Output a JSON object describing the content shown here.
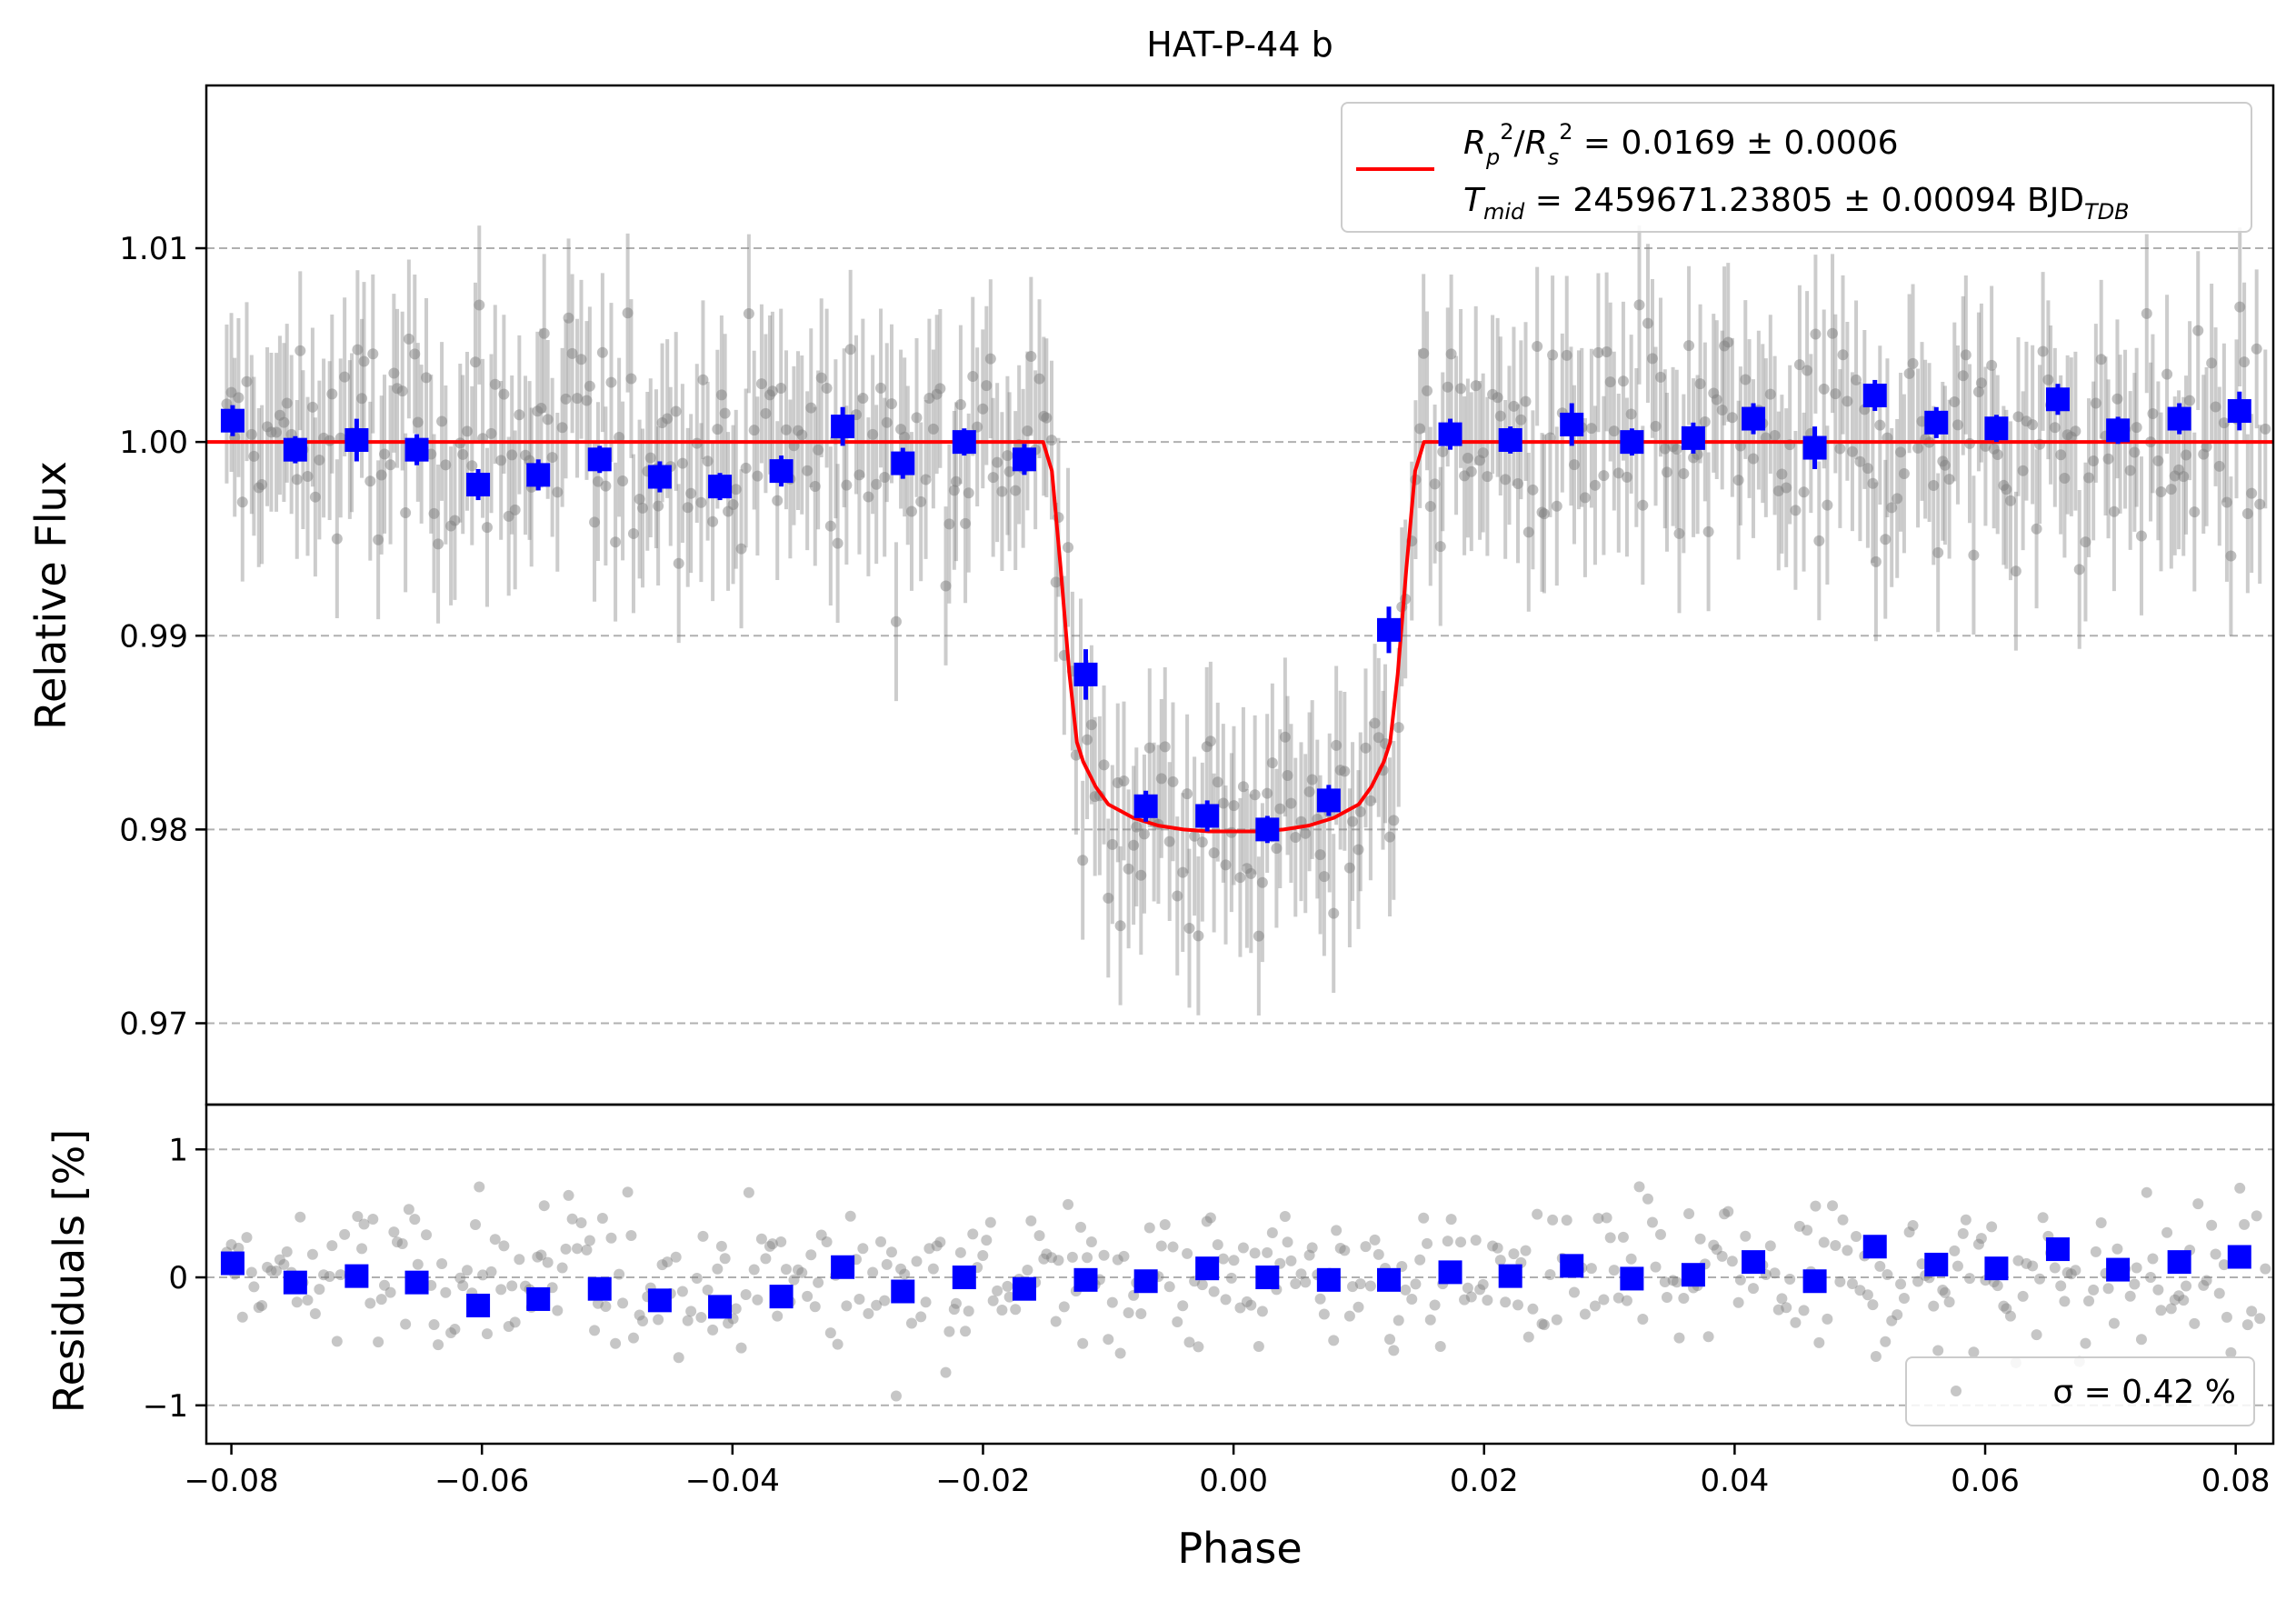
{
  "chart_data": {
    "type": "scatter",
    "title": "HAT-P-44 b",
    "xlabel": "Phase",
    "xlim": [
      -0.082,
      0.083
    ],
    "xticks": [
      -0.08,
      -0.06,
      -0.04,
      -0.02,
      0.0,
      0.02,
      0.04,
      0.06,
      0.08
    ],
    "xtick_labels": [
      "−0.08",
      "−0.06",
      "−0.04",
      "−0.02",
      "0.00",
      "0.02",
      "0.04",
      "0.06",
      "0.08"
    ],
    "top_panel": {
      "ylabel": "Relative Flux",
      "ylim": [
        0.9658,
        1.0184
      ],
      "yticks": [
        0.97,
        0.98,
        0.99,
        1.0,
        1.01
      ],
      "ytick_labels": [
        "0.97",
        "0.98",
        "0.99",
        "1.00",
        "1.01"
      ],
      "grid": "horizontal dashed",
      "legend": {
        "placement": "top-right",
        "line_1": "R_p^2/R_s^2 = 0.0169 ± 0.0006",
        "line_2": "T_mid = 2459671.23805 ± 0.00094 BJD_TDB"
      },
      "model": {
        "color": "#ff0000",
        "baseline": 1.0,
        "depth": 0.0201,
        "ingress_phase": [
          -0.0152,
          -0.0125
        ],
        "egress_phase": [
          0.0125,
          0.0152
        ],
        "x": [
          -0.082,
          -0.0152,
          -0.0145,
          -0.0138,
          -0.0131,
          -0.0125,
          -0.012,
          -0.011,
          -0.01,
          -0.008,
          -0.006,
          -0.004,
          -0.002,
          0.0,
          0.002,
          0.004,
          0.006,
          0.008,
          0.01,
          0.011,
          0.012,
          0.0125,
          0.0131,
          0.0138,
          0.0145,
          0.0152,
          0.083
        ],
        "y": [
          1.0,
          1.0,
          0.9985,
          0.9935,
          0.988,
          0.9845,
          0.9835,
          0.9822,
          0.9813,
          0.9806,
          0.9802,
          0.98,
          0.9799,
          0.9799,
          0.9799,
          0.98,
          0.9802,
          0.9806,
          0.9813,
          0.9822,
          0.9835,
          0.9845,
          0.988,
          0.9935,
          0.9985,
          1.0,
          1.0
        ]
      },
      "binned": {
        "color": "#0000ff",
        "x": [
          -0.0799,
          -0.0749,
          -0.07,
          -0.0652,
          -0.0603,
          -0.0555,
          -0.0506,
          -0.0458,
          -0.041,
          -0.0361,
          -0.0312,
          -0.0264,
          -0.0215,
          -0.0167,
          -0.0118,
          -0.007,
          -0.0021,
          0.0027,
          0.0076,
          0.0124,
          0.0173,
          0.0221,
          0.027,
          0.0318,
          0.0367,
          0.0415,
          0.0464,
          0.0512,
          0.0561,
          0.0609,
          0.0658,
          0.0706,
          0.0755,
          0.0803
        ],
        "y": [
          1.0011,
          0.9996,
          1.0001,
          0.9996,
          0.9978,
          0.9983,
          0.9991,
          0.9982,
          0.9977,
          0.9985,
          1.0008,
          0.9989,
          1.0,
          0.9991,
          0.988,
          0.9812,
          0.9807,
          0.98,
          0.9815,
          0.9903,
          1.0004,
          1.0001,
          1.0009,
          1.0,
          1.0002,
          1.0012,
          0.9997,
          1.0024,
          1.001,
          1.0007,
          1.0022,
          1.0006,
          1.0012,
          1.0016
        ],
        "err": [
          0.0008,
          0.0007,
          0.0011,
          0.0008,
          0.0008,
          0.0008,
          0.0007,
          0.0008,
          0.0007,
          0.0008,
          0.001,
          0.0008,
          0.0007,
          0.0008,
          0.0013,
          0.0008,
          0.0008,
          0.0007,
          0.0008,
          0.0012,
          0.0008,
          0.0007,
          0.0011,
          0.0007,
          0.0008,
          0.0008,
          0.0011,
          0.0008,
          0.0008,
          0.0007,
          0.0008,
          0.0007,
          0.0008,
          0.001
        ]
      },
      "raw_points": {
        "color": "#808080",
        "count": 500,
        "scatter_sigma": 0.0042,
        "error_bar": 0.0041
      }
    },
    "bottom_panel": {
      "ylabel": "Residuals [%]",
      "ylim": [
        -1.3,
        1.35
      ],
      "yticks": [
        -1,
        0,
        1
      ],
      "ytick_labels": [
        "−1",
        "0",
        "1"
      ],
      "grid": "horizontal dashed",
      "legend": {
        "placement": "bottom-right",
        "text": "σ = 0.42 %"
      },
      "binned": {
        "color": "#0000ff",
        "y": [
          0.11,
          -0.04,
          0.01,
          -0.04,
          -0.22,
          -0.17,
          -0.09,
          -0.18,
          -0.23,
          -0.15,
          0.08,
          -0.11,
          0.0,
          -0.09,
          -0.02,
          -0.03,
          0.07,
          0.0,
          -0.02,
          -0.02,
          0.04,
          0.01,
          0.09,
          -0.01,
          0.02,
          0.12,
          -0.03,
          0.24,
          0.1,
          0.07,
          0.22,
          0.06,
          0.12,
          0.16
        ]
      }
    }
  }
}
